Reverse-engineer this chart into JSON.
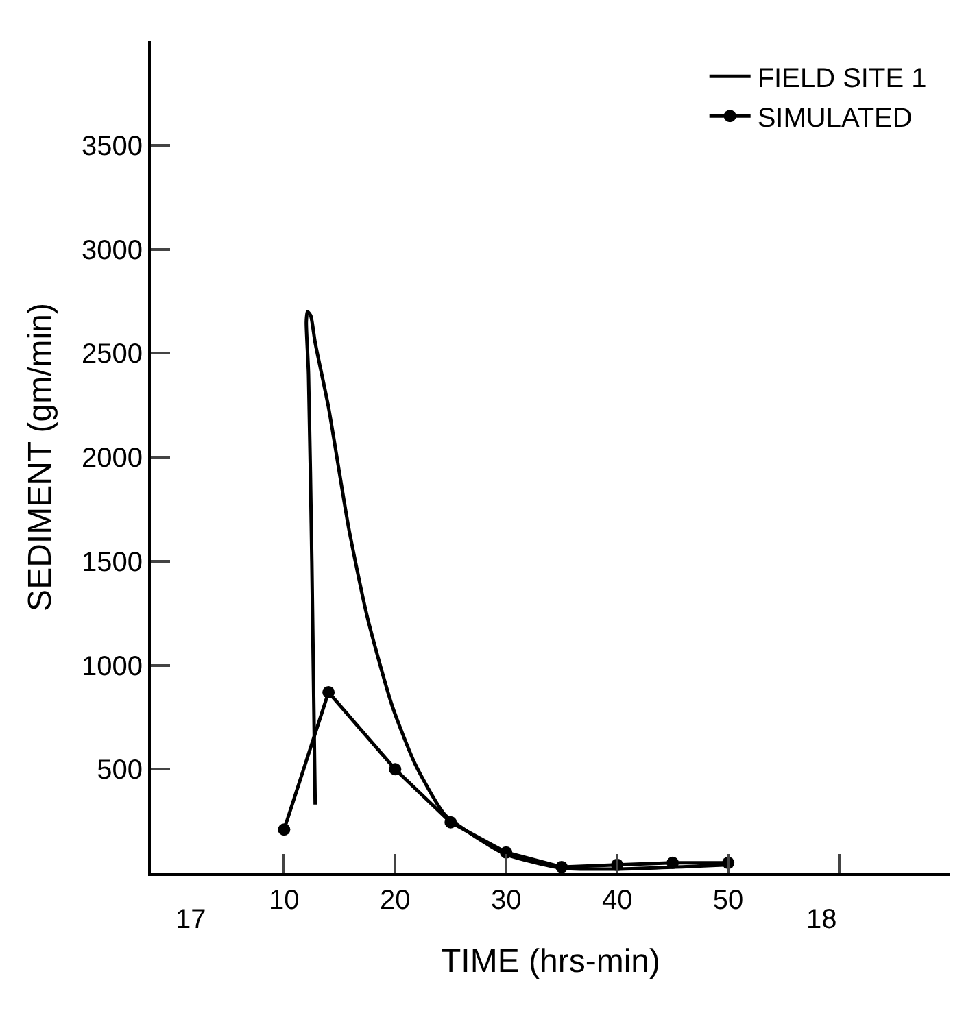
{
  "chart_data": {
    "type": "line",
    "xlabel": "TIME (hrs-min)",
    "ylabel": "SEDIMENT (gm/min)",
    "xlim": [
      -2,
      70
    ],
    "xticks": [
      10,
      20,
      30,
      40,
      50,
      {
        "value": 60,
        "label": null
      }
    ],
    "annotations": [
      "17",
      "18"
    ],
    "ylim": [
      0,
      4000
    ],
    "yticks": [
      500,
      1000,
      1500,
      2000,
      2500,
      3000,
      3500
    ],
    "legend": "top right",
    "series": [
      {
        "name": "FIELD SITE 1",
        "color": "#000000",
        "marker": "none",
        "x": [
          12.8,
          12.5,
          12.2,
          12.0,
          12.1,
          12.4,
          12.8,
          14.0,
          15.8,
          17.5,
          19.7,
          21.8,
          24.5,
          27.1,
          30,
          35,
          40,
          50
        ],
        "values": [
          330,
          1500,
          2400,
          2650,
          2700,
          2680,
          2550,
          2240,
          1665,
          1230,
          810,
          525,
          280,
          180,
          90,
          25,
          20,
          40
        ]
      },
      {
        "name": "SIMULATED",
        "color": "#000000",
        "marker": "circle",
        "x": [
          10,
          14,
          20,
          25,
          30,
          35,
          40,
          45,
          50
        ],
        "values": [
          210,
          870,
          500,
          245,
          100,
          30,
          40,
          50,
          50
        ]
      }
    ]
  }
}
